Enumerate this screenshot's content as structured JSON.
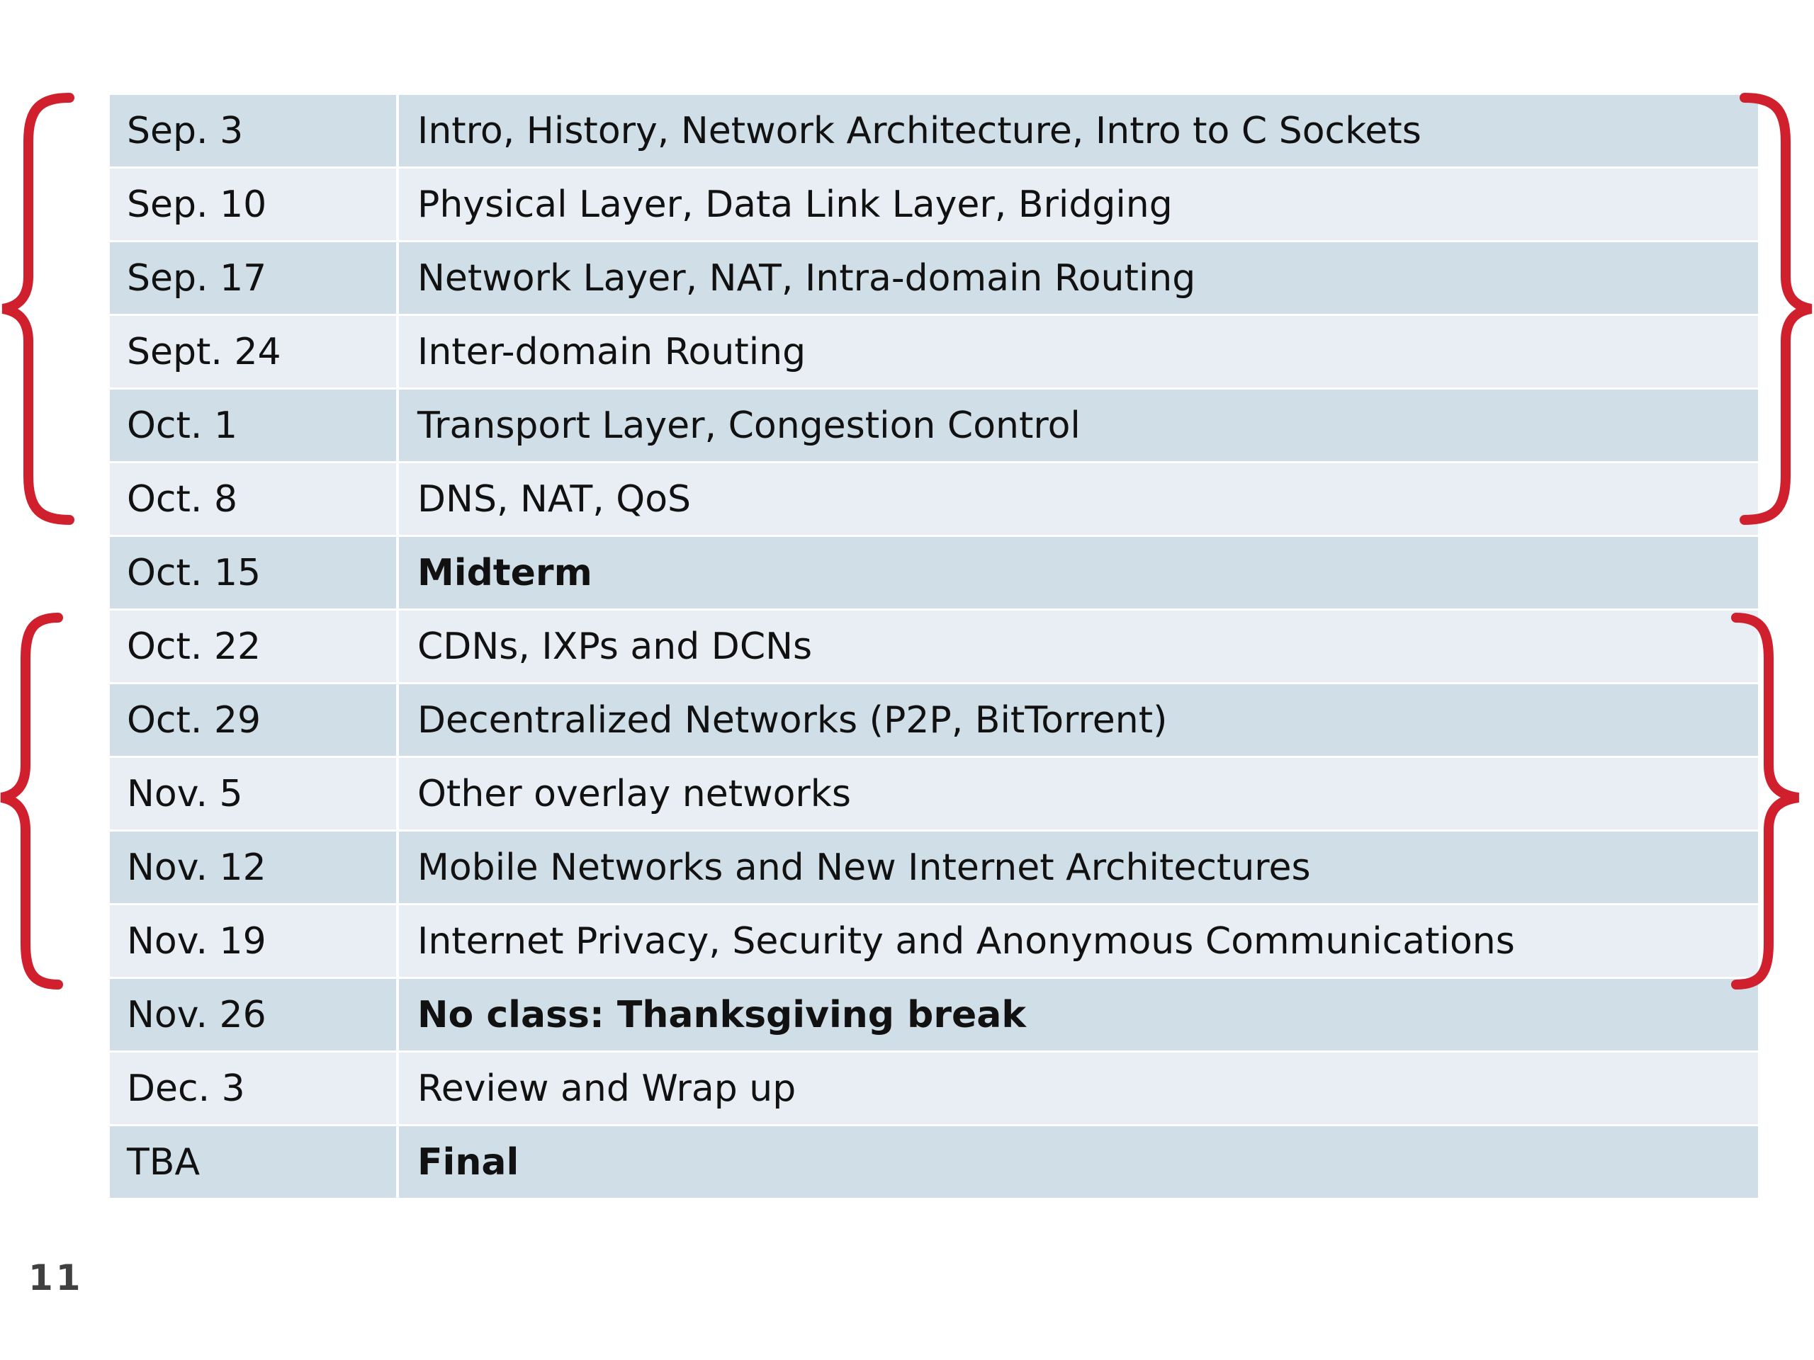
{
  "slide": {
    "page_number": "11",
    "bracket_color": "#d0202e",
    "row_colors": [
      "#cfdee7",
      "#e8eef3"
    ]
  },
  "schedule": {
    "rows": [
      {
        "date": "Sep. 3",
        "topic": "Intro, History, Network Architecture, Intro to C Sockets",
        "bold": false
      },
      {
        "date": "Sep. 10",
        "topic": "Physical Layer, Data Link Layer, Bridging",
        "bold": false
      },
      {
        "date": "Sep. 17",
        "topic": "Network Layer, NAT, Intra-domain Routing",
        "bold": false
      },
      {
        "date": "Sept. 24",
        "topic": "Inter-domain Routing",
        "bold": false
      },
      {
        "date": "Oct. 1",
        "topic": "Transport Layer, Congestion Control",
        "bold": false
      },
      {
        "date": "Oct. 8",
        "topic": "DNS, NAT, QoS",
        "bold": false
      },
      {
        "date": "Oct. 15",
        "topic": "Midterm",
        "bold": true
      },
      {
        "date": "Oct. 22",
        "topic": "CDNs, IXPs and DCNs",
        "bold": false
      },
      {
        "date": "Oct. 29",
        "topic": "Decentralized Networks (P2P, BitTorrent)",
        "bold": false
      },
      {
        "date": "Nov. 5",
        "topic": "Other overlay networks",
        "bold": false
      },
      {
        "date": "Nov. 12",
        "topic": "Mobile Networks and New Internet Architectures",
        "bold": false
      },
      {
        "date": "Nov. 19",
        "topic": "Internet Privacy, Security and Anonymous Communications",
        "bold": false
      },
      {
        "date": "Nov. 26",
        "topic": "No class: Thanksgiving break",
        "bold": true
      },
      {
        "date": "Dec. 3",
        "topic": "Review and Wrap up",
        "bold": false
      },
      {
        "date": "TBA",
        "topic": "Final",
        "bold": true
      }
    ]
  }
}
